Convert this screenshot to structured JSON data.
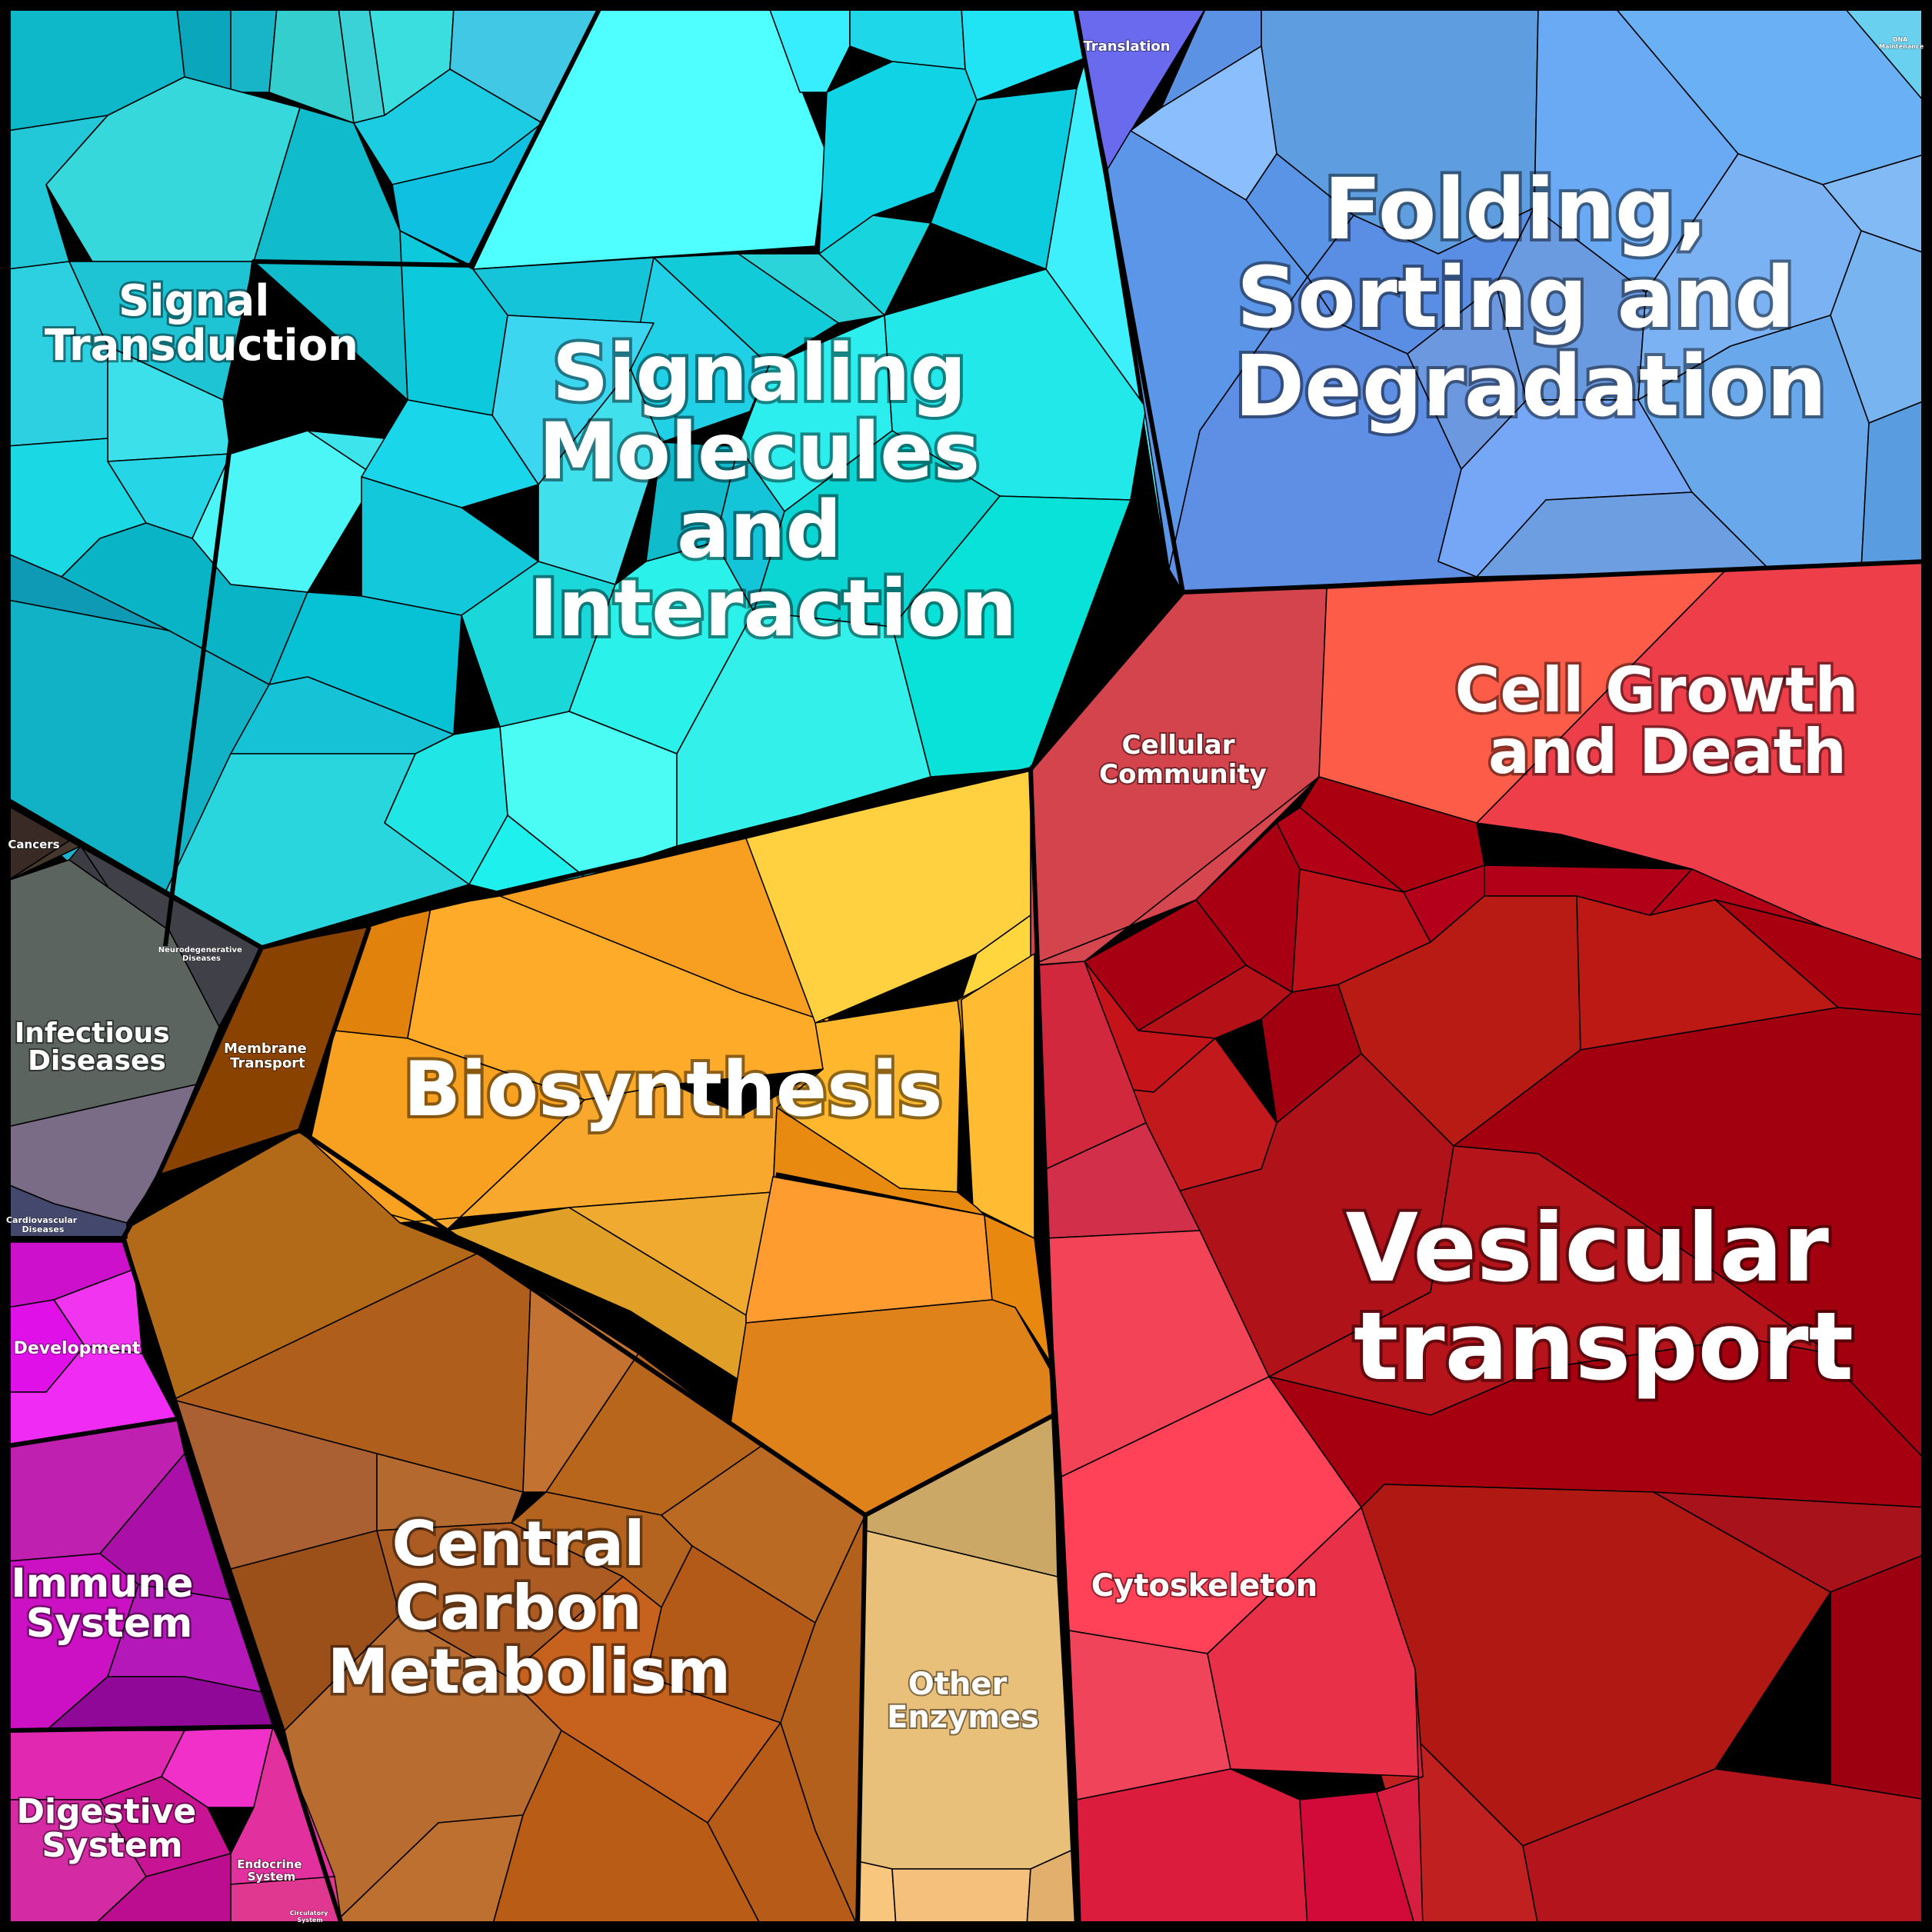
{
  "categories": {
    "signal_transduction": {
      "label": [
        "Signal",
        "Transduction"
      ],
      "color": "#0ab8cc"
    },
    "signaling_molecules": {
      "label": [
        "Signaling",
        "Molecules",
        "and",
        "Interaction"
      ],
      "color": "#2ee6ea"
    },
    "folding_sorting": {
      "label": [
        "Folding,",
        "Sorting and",
        "Degradation"
      ],
      "color": "#5a8fe2"
    },
    "translation": {
      "label": [
        "Translation"
      ],
      "color": "#6666ee"
    },
    "dna_maintenance": {
      "label": [
        "DNA",
        "Maintenance"
      ],
      "color": "#7cc4e4"
    },
    "cellular_community": {
      "label": [
        "Cellular",
        "Community"
      ],
      "color": "#d4444c"
    },
    "cell_growth": {
      "label": [
        "Cell Growth",
        "and Death"
      ],
      "color": "#ef3c48"
    },
    "vesicular_transport": {
      "label": [
        "Vesicular",
        "transport"
      ],
      "color": "#a80010"
    },
    "cytoskeleton": {
      "label": [
        "Cytoskeleton"
      ],
      "color": "#f03a52"
    },
    "biosynthesis": {
      "label": [
        "Biosynthesis"
      ],
      "color": "#f8a82a"
    },
    "central_carbon": {
      "label": [
        "Central",
        "Carbon",
        "Metabolism"
      ],
      "color": "#b8641e"
    },
    "other_enzymes": {
      "label": [
        "Other",
        "Enzymes"
      ],
      "color": "#e8bf78"
    },
    "membrane_transport": {
      "label": [
        "Membrane",
        "Transport"
      ],
      "color": "#8a4200"
    },
    "cancers": {
      "label": [
        "Cancers"
      ],
      "color": "#3a2a26"
    },
    "neurodegenerative": {
      "label": [
        "Neurodegenerative",
        "Diseases"
      ],
      "color": "#3c3c44"
    },
    "infectious": {
      "label": [
        "Infectious",
        "Diseases"
      ],
      "color": "#5c6460"
    },
    "cardiovascular": {
      "label": [
        "Cardiovascular",
        "Diseases"
      ],
      "color": "#44486c"
    },
    "development": {
      "label": [
        "Development"
      ],
      "color": "#f030f0"
    },
    "immune": {
      "label": [
        "Immune",
        "System"
      ],
      "color": "#c21cb0"
    },
    "digestive": {
      "label": [
        "Digestive",
        "System"
      ],
      "color": "#d82ca6"
    },
    "endocrine": {
      "label": [
        "Endocrine",
        "System"
      ],
      "color": "#e2309e"
    },
    "circulatory": {
      "label": [
        "Circulatory",
        "System"
      ],
      "color": "#e03890"
    }
  }
}
